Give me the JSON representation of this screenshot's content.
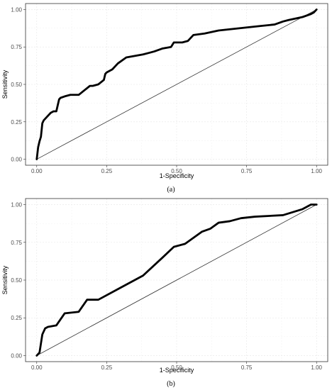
{
  "chart_data": [
    {
      "type": "line",
      "caption": "(a)",
      "xlabel": "1-Specificity",
      "ylabel": "Sensitivity",
      "xlim": [
        0,
        1
      ],
      "ylim": [
        0,
        1
      ],
      "xticks": [
        "0.00",
        "0.25",
        "0.50",
        "0.75",
        "1.00"
      ],
      "yticks": [
        "0.00",
        "0.25",
        "0.50",
        "0.75",
        "1.00"
      ],
      "grid": true,
      "reference_line": "diagonal",
      "series": [
        {
          "x": [
            0.0,
            0.005,
            0.01,
            0.015,
            0.02,
            0.025,
            0.03,
            0.04,
            0.05,
            0.06,
            0.07,
            0.08,
            0.085,
            0.1,
            0.12,
            0.15,
            0.17,
            0.19,
            0.2,
            0.22,
            0.24,
            0.245,
            0.25,
            0.27,
            0.28,
            0.29,
            0.32,
            0.35,
            0.38,
            0.4,
            0.42,
            0.45,
            0.48,
            0.49,
            0.52,
            0.54,
            0.56,
            0.6,
            0.65,
            0.7,
            0.75,
            0.8,
            0.85,
            0.88,
            0.9,
            0.95,
            0.98,
            0.99,
            1.0
          ],
          "y": [
            0.0,
            0.08,
            0.12,
            0.15,
            0.24,
            0.26,
            0.27,
            0.29,
            0.31,
            0.32,
            0.32,
            0.4,
            0.41,
            0.42,
            0.43,
            0.43,
            0.46,
            0.49,
            0.49,
            0.5,
            0.53,
            0.57,
            0.58,
            0.6,
            0.62,
            0.64,
            0.68,
            0.69,
            0.7,
            0.71,
            0.72,
            0.74,
            0.75,
            0.78,
            0.78,
            0.79,
            0.83,
            0.84,
            0.86,
            0.87,
            0.88,
            0.89,
            0.9,
            0.92,
            0.93,
            0.95,
            0.97,
            0.98,
            1.0
          ]
        }
      ]
    },
    {
      "type": "line",
      "caption": "(b)",
      "xlabel": "1-Specificity",
      "ylabel": "Sensitivity",
      "xlim": [
        0,
        1
      ],
      "ylim": [
        0,
        1
      ],
      "xticks": [
        "0.00",
        "0.25",
        "0.50",
        "0.75",
        "1.00"
      ],
      "yticks": [
        "0.00",
        "0.25",
        "0.50",
        "0.75",
        "1.00"
      ],
      "grid": true,
      "reference_line": "diagonal",
      "series": [
        {
          "x": [
            0.0,
            0.01,
            0.02,
            0.03,
            0.04,
            0.07,
            0.1,
            0.15,
            0.18,
            0.22,
            0.3,
            0.38,
            0.45,
            0.49,
            0.53,
            0.59,
            0.62,
            0.65,
            0.69,
            0.73,
            0.78,
            0.88,
            0.95,
            0.98,
            1.0
          ],
          "y": [
            0.0,
            0.02,
            0.14,
            0.18,
            0.19,
            0.2,
            0.28,
            0.29,
            0.37,
            0.37,
            0.45,
            0.53,
            0.65,
            0.72,
            0.74,
            0.82,
            0.84,
            0.88,
            0.89,
            0.91,
            0.92,
            0.93,
            0.97,
            1.0,
            1.0
          ]
        }
      ]
    }
  ]
}
